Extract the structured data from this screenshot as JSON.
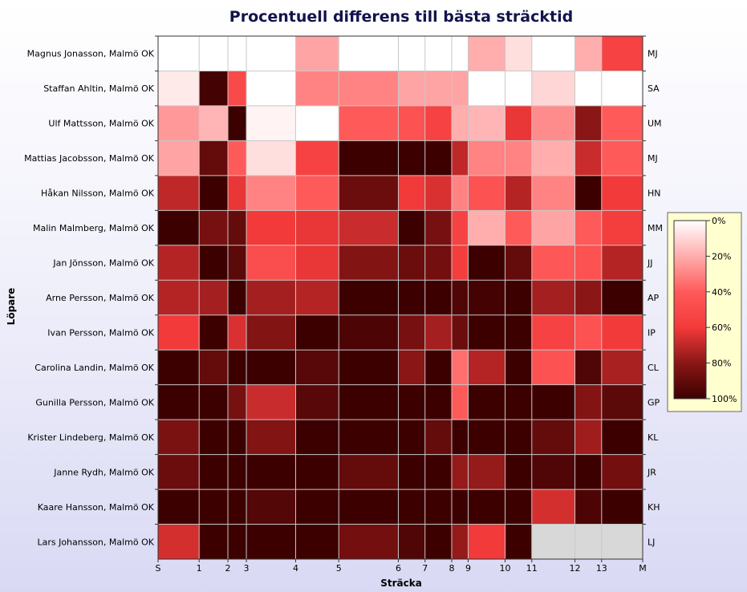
{
  "chart_data": {
    "type": "heatmap",
    "title": "Procentuell differens till bästa sträcktid",
    "xlabel": "Sträcka",
    "ylabel": "Löpare",
    "x_ticks": [
      "S",
      "1",
      "2",
      "3",
      "4",
      "5",
      "6",
      "7",
      "8",
      "9",
      "10",
      "11",
      "12",
      "13",
      "M"
    ],
    "x_boundaries": [
      0,
      1,
      1.7,
      2.15,
      3.35,
      4.4,
      5.85,
      6.5,
      7.15,
      7.55,
      8.45,
      9.1,
      10.15,
      10.8,
      11.8
    ],
    "rows": [
      {
        "name": "Magnus Jonasson, Malmö OK",
        "abbr": "MJ",
        "values": [
          0,
          0,
          0,
          0,
          22,
          0,
          0,
          0,
          0,
          20,
          8,
          0,
          20,
          55
        ]
      },
      {
        "name": "Staffan Ahltin, Malmö OK",
        "abbr": "SA",
        "values": [
          5,
          98,
          50,
          0,
          30,
          30,
          22,
          22,
          22,
          0,
          0,
          10,
          0,
          0
        ]
      },
      {
        "name": "Ulf Mattsson, Malmö OK",
        "abbr": "UM",
        "values": [
          25,
          18,
          100,
          3,
          0,
          40,
          45,
          55,
          20,
          18,
          62,
          28,
          80,
          40
        ]
      },
      {
        "name": "Mattias Jacobsson, Malmö OK",
        "abbr": "MJ",
        "values": [
          22,
          90,
          40,
          8,
          55,
          100,
          100,
          100,
          70,
          30,
          30,
          20,
          68,
          40
        ]
      },
      {
        "name": "Håkan Nilsson, Malmö OK",
        "abbr": "HN",
        "values": [
          70,
          100,
          62,
          30,
          40,
          88,
          60,
          65,
          30,
          45,
          72,
          30,
          100,
          60
        ]
      },
      {
        "name": "Malin Malmberg, Malmö OK",
        "abbr": "MM",
        "values": [
          100,
          85,
          90,
          60,
          62,
          68,
          100,
          85,
          55,
          20,
          40,
          22,
          40,
          58
        ]
      },
      {
        "name": "Jan Jönsson, Malmö OK",
        "abbr": "JJ",
        "values": [
          72,
          100,
          92,
          48,
          62,
          82,
          88,
          86,
          58,
          100,
          90,
          42,
          45,
          72
        ]
      },
      {
        "name": "Arne Persson, Malmö OK",
        "abbr": "AP",
        "values": [
          72,
          75,
          100,
          75,
          72,
          100,
          100,
          100,
          95,
          98,
          100,
          75,
          80,
          100
        ]
      },
      {
        "name": "Ivan Persson, Malmö OK",
        "abbr": "IP",
        "values": [
          60,
          100,
          65,
          82,
          100,
          96,
          85,
          75,
          88,
          100,
          100,
          55,
          45,
          60
        ]
      },
      {
        "name": "Carolina Landin, Malmö OK",
        "abbr": "CL",
        "values": [
          100,
          90,
          100,
          100,
          93,
          100,
          80,
          100,
          35,
          72,
          100,
          45,
          95,
          74
        ]
      },
      {
        "name": "Gunilla Persson, Malmö OK",
        "abbr": "GP",
        "values": [
          100,
          100,
          85,
          68,
          93,
          100,
          100,
          100,
          40,
          100,
          100,
          100,
          82,
          92
        ]
      },
      {
        "name": "Krister Lindeberg, Malmö OK",
        "abbr": "KL",
        "values": [
          84,
          100,
          100,
          82,
          100,
          100,
          100,
          90,
          100,
          100,
          100,
          90,
          76,
          100
        ]
      },
      {
        "name": "Janne Rydh, Malmö OK",
        "abbr": "JR",
        "values": [
          88,
          100,
          100,
          100,
          100,
          90,
          100,
          100,
          78,
          78,
          100,
          95,
          100,
          86
        ]
      },
      {
        "name": "Kaare Hansson, Malmö OK",
        "abbr": "KH",
        "values": [
          100,
          100,
          100,
          94,
          100,
          100,
          100,
          100,
          100,
          100,
          100,
          66,
          96,
          100
        ]
      },
      {
        "name": "Lars Johansson, Malmö OK",
        "abbr": "LJ",
        "values": [
          66,
          100,
          100,
          100,
          100,
          86,
          95,
          100,
          78,
          60,
          100,
          null,
          null,
          null
        ]
      }
    ],
    "color_scale": {
      "min": 0,
      "max": 100,
      "stops": [
        {
          "value": 0,
          "color": "#ffffff"
        },
        {
          "value": 40,
          "color": "#ff5a5a"
        },
        {
          "value": 60,
          "color": "#f33a3a"
        },
        {
          "value": 80,
          "color": "#8a1616"
        },
        {
          "value": 100,
          "color": "#3d0000"
        }
      ],
      "missing_color": "#d8d8d8",
      "legend_ticks": [
        "0%",
        "20%",
        "40%",
        "60%",
        "80%",
        "100%"
      ]
    }
  }
}
